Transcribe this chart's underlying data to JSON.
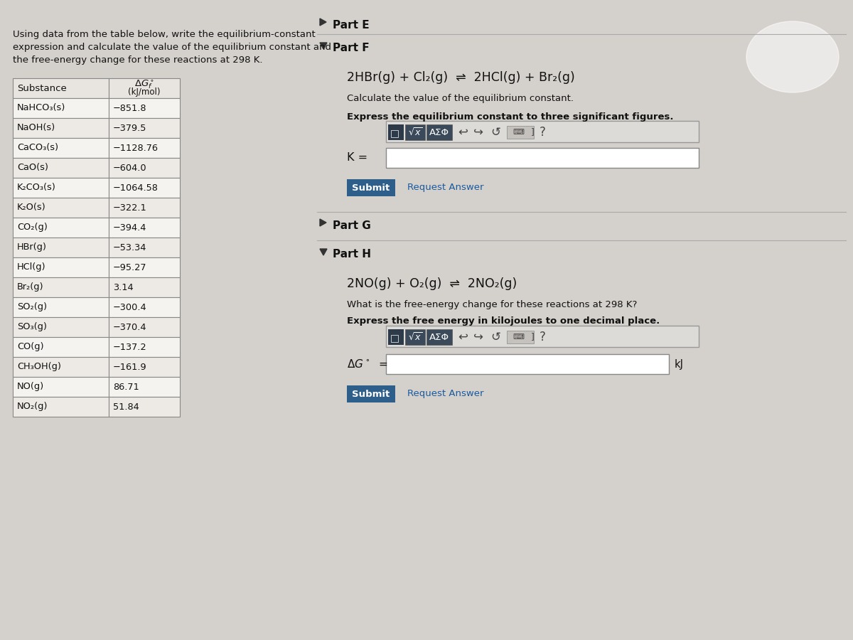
{
  "bg_color": "#d4d0cb",
  "intro_text": "Using data from the table below, write the equilibrium-constant\nexpression and calculate the value of the equilibrium constant and\nthe free-energy change for these reactions at 298 K.",
  "table_data": [
    [
      "NaHCO₃(s)",
      "−851.8"
    ],
    [
      "NaOH(s)",
      "−379.5"
    ],
    [
      "CaCO₃(s)",
      "−1128.76"
    ],
    [
      "CaO(s)",
      "−604.0"
    ],
    [
      "K₂CO₃(s)",
      "−1064.58"
    ],
    [
      "K₂O(s)",
      "−322.1"
    ],
    [
      "CO₂(g)",
      "−394.4"
    ],
    [
      "HBr(g)",
      "−53.34"
    ],
    [
      "HCl(g)",
      "−95.27"
    ],
    [
      "Br₂(g)",
      "3.14"
    ],
    [
      "SO₂(g)",
      "−300.4"
    ],
    [
      "SO₃(g)",
      "−370.4"
    ],
    [
      "CO(g)",
      "−137.2"
    ],
    [
      "CH₃OH(g)",
      "−161.9"
    ],
    [
      "NO(g)",
      "86.71"
    ],
    [
      "NO₂(g)",
      "51.84"
    ]
  ],
  "part_e_text": "Part E",
  "part_f_text": "Part F",
  "part_f_reaction": "2HBr(g) + Cl₂(g)  ⇌  2HCl(g) + Br₂(g)",
  "part_f_desc1": "Calculate the value of the equilibrium constant.",
  "part_f_desc2": "Express the equilibrium constant to three significant figures.",
  "part_g_text": "Part G",
  "part_h_text": "Part H",
  "part_h_reaction": "2NO(g) + O₂(g)  ⇌  2NO₂(g)",
  "part_h_desc1": "What is the free-energy change for these reactions at 298 K?",
  "part_h_desc2": "Express the free energy in kilojoules to one decimal place.",
  "part_h_unit": "kJ",
  "submit_bg": "#2d5f8a",
  "submit_text_color": "#ffffff",
  "input_box_bg": "#ffffff",
  "table_border_color": "#888888",
  "text_color": "#111111",
  "link_color": "#1a5aa0",
  "toolbar_dark_btn": "#2d3a4a",
  "toolbar_math_btn": "#3a4a5a",
  "toolbar_bg": "#dddbd8",
  "separator_color": "#aaaaaa"
}
